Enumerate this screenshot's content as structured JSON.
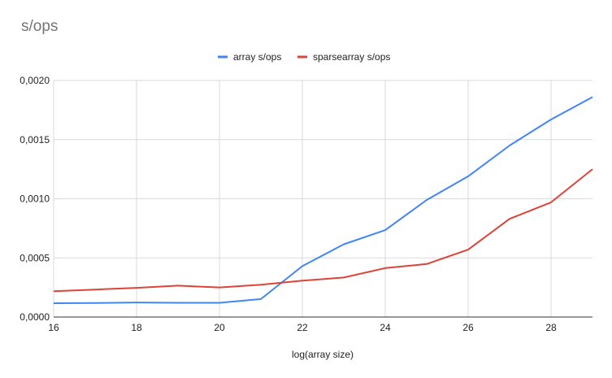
{
  "chart_data": {
    "type": "line",
    "title": "s/ops",
    "xlabel": "log(array size)",
    "ylabel": "",
    "xlim": [
      16,
      29
    ],
    "ylim": [
      0,
      0.002
    ],
    "grid": true,
    "legend_position": "top-center",
    "x_ticks": [
      "16",
      "18",
      "20",
      "22",
      "24",
      "26",
      "28"
    ],
    "y_ticks": [
      "0,0000",
      "0,0005",
      "0,0010",
      "0,0015",
      "0,0020"
    ],
    "x": [
      16,
      17,
      18,
      19,
      20,
      21,
      22,
      23,
      24,
      25,
      26,
      27,
      28,
      29
    ],
    "series": [
      {
        "name": "array s/ops",
        "color": "#4285f4",
        "values": [
          0.000117,
          0.000119,
          0.000123,
          0.00012,
          0.00012,
          0.000152,
          0.00043,
          0.000615,
          0.000735,
          0.00099,
          0.00119,
          0.00145,
          0.00167,
          0.00186
        ]
      },
      {
        "name": "sparsearray s/ops",
        "color": "#db4437",
        "values": [
          0.000218,
          0.000232,
          0.000247,
          0.000265,
          0.00025,
          0.000273,
          0.000307,
          0.000334,
          0.000414,
          0.000448,
          0.00057,
          0.00083,
          0.00097,
          0.00125
        ]
      }
    ]
  }
}
